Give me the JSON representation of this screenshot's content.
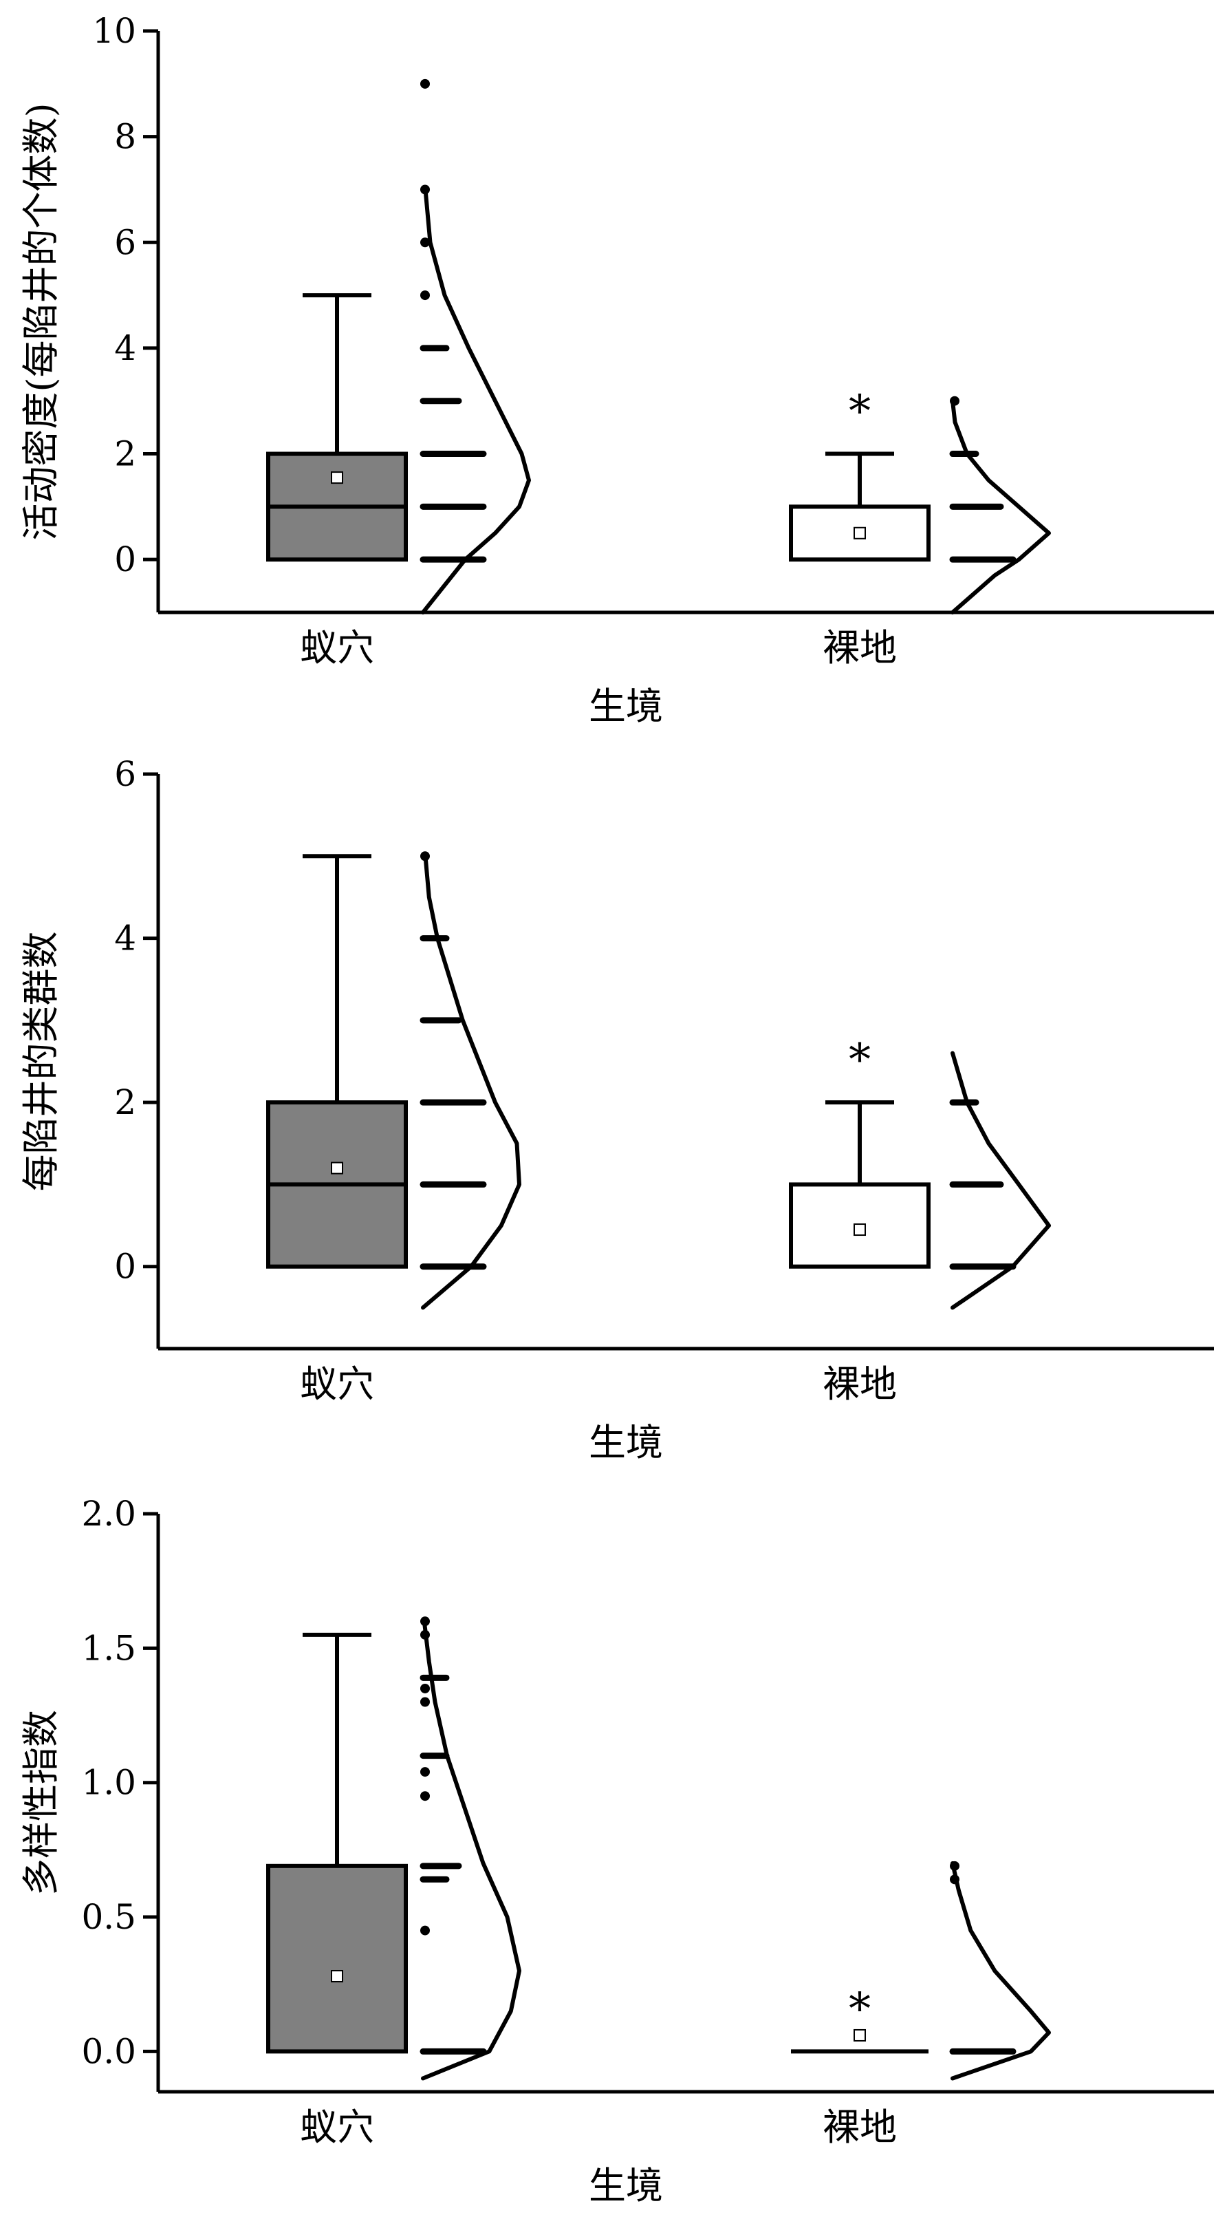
{
  "colors": {
    "ant_nest_box": "#808080",
    "bare_box": "#ffffff",
    "line": "#000000",
    "mean_marker": "#ffffff"
  },
  "chart_data": [
    {
      "type": "box",
      "ylabel": "活动密度(每陷井的个体数)",
      "xlabel": "生境",
      "yticks": [
        0,
        2,
        4,
        6,
        8,
        10
      ],
      "ytick_labels": [
        "0",
        "2",
        "4",
        "6",
        "8",
        "10"
      ],
      "ylim": [
        -1,
        10
      ],
      "grid": false,
      "categories": [
        "蚁穴",
        "裸地"
      ],
      "boxes": [
        {
          "category": "蚁穴",
          "min": 0,
          "q1": 0,
          "median": 1,
          "q3": 2,
          "max": 5,
          "mean": 1.55,
          "outlier_star": false,
          "points": [
            0,
            1,
            2,
            3,
            4,
            5,
            6,
            7,
            9
          ],
          "point_widths": [
            5,
            5,
            5,
            3,
            2,
            1,
            1,
            1,
            1
          ],
          "density": [
            [
              -1,
              0
            ],
            [
              0,
              0.35
            ],
            [
              0.5,
              0.6
            ],
            [
              1,
              0.8
            ],
            [
              1.5,
              0.88
            ],
            [
              2,
              0.82
            ],
            [
              3,
              0.6
            ],
            [
              4,
              0.38
            ],
            [
              5,
              0.18
            ],
            [
              6,
              0.06
            ],
            [
              7,
              0.02
            ]
          ]
        },
        {
          "category": "裸地",
          "min": 0,
          "q1": 0,
          "median": 0,
          "q3": 1,
          "max": 2,
          "mean": 0.5,
          "outlier_star": true,
          "points": [
            0,
            1,
            2,
            3
          ],
          "point_widths": [
            5,
            4,
            2,
            1
          ],
          "density": [
            [
              -1,
              0
            ],
            [
              -0.3,
              0.35
            ],
            [
              0,
              0.55
            ],
            [
              0.5,
              0.8
            ],
            [
              1,
              0.55
            ],
            [
              1.5,
              0.3
            ],
            [
              2,
              0.12
            ],
            [
              2.6,
              0.02
            ],
            [
              3,
              0
            ]
          ]
        }
      ]
    },
    {
      "type": "box",
      "ylabel": "每陷井的类群数",
      "xlabel": "生境",
      "yticks": [
        0,
        2,
        4,
        6
      ],
      "ytick_labels": [
        "0",
        "2",
        "4",
        "6"
      ],
      "ylim": [
        -1,
        6
      ],
      "grid": false,
      "categories": [
        "蚁穴",
        "裸地"
      ],
      "boxes": [
        {
          "category": "蚁穴",
          "min": 0,
          "q1": 0,
          "median": 1,
          "q3": 2,
          "max": 5,
          "mean": 1.2,
          "outlier_star": false,
          "points": [
            0,
            1,
            2,
            3,
            4,
            5
          ],
          "point_widths": [
            5,
            5,
            5,
            3,
            2,
            1
          ],
          "density": [
            [
              -0.5,
              0
            ],
            [
              0,
              0.4
            ],
            [
              0.5,
              0.65
            ],
            [
              1,
              0.8
            ],
            [
              1.5,
              0.78
            ],
            [
              2,
              0.6
            ],
            [
              3,
              0.33
            ],
            [
              4,
              0.12
            ],
            [
              4.5,
              0.05
            ],
            [
              5,
              0.02
            ]
          ]
        },
        {
          "category": "裸地",
          "min": 0,
          "q1": 0,
          "median": 0,
          "q3": 1,
          "max": 2,
          "mean": 0.45,
          "outlier_star": true,
          "points": [
            0,
            1,
            2
          ],
          "point_widths": [
            5,
            4,
            2
          ],
          "density": [
            [
              -0.5,
              0
            ],
            [
              0,
              0.5
            ],
            [
              0.5,
              0.8
            ],
            [
              1,
              0.55
            ],
            [
              1.5,
              0.3
            ],
            [
              2,
              0.12
            ],
            [
              2.6,
              0
            ]
          ]
        }
      ]
    },
    {
      "type": "box",
      "ylabel": "多样性指数",
      "xlabel": "生境",
      "yticks": [
        0.0,
        0.5,
        1.0,
        1.5,
        2.0
      ],
      "ytick_labels": [
        "0.0",
        "0.5",
        "1.0",
        "1.5",
        "2.0"
      ],
      "ylim": [
        -0.15,
        2.0
      ],
      "grid": false,
      "categories": [
        "蚁穴",
        "裸地"
      ],
      "boxes": [
        {
          "category": "蚁穴",
          "min": 0,
          "q1": 0,
          "median": 0,
          "q3": 0.69,
          "max": 1.55,
          "mean": 0.28,
          "outlier_star": false,
          "points": [
            0,
            0.45,
            0.64,
            0.69,
            0.95,
            1.04,
            1.1,
            1.3,
            1.35,
            1.39,
            1.55,
            1.6
          ],
          "point_widths": [
            5,
            1,
            2,
            3,
            1,
            1,
            2,
            1,
            1,
            2,
            1,
            1
          ],
          "density": [
            [
              -0.1,
              0
            ],
            [
              0,
              0.55
            ],
            [
              0.15,
              0.73
            ],
            [
              0.3,
              0.8
            ],
            [
              0.5,
              0.7
            ],
            [
              0.7,
              0.5
            ],
            [
              0.9,
              0.35
            ],
            [
              1.1,
              0.2
            ],
            [
              1.3,
              0.1
            ],
            [
              1.45,
              0.05
            ],
            [
              1.6,
              0.01
            ]
          ]
        },
        {
          "category": "裸地",
          "min": 0,
          "q1": 0,
          "median": 0,
          "q3": 0,
          "max": 0,
          "mean": 0.06,
          "outlier_star": true,
          "points": [
            0,
            0.64,
            0.69
          ],
          "point_widths": [
            5,
            1,
            1
          ],
          "density": [
            [
              -0.1,
              0
            ],
            [
              0,
              0.65
            ],
            [
              0.07,
              0.8
            ],
            [
              0.15,
              0.65
            ],
            [
              0.3,
              0.35
            ],
            [
              0.45,
              0.15
            ],
            [
              0.6,
              0.05
            ],
            [
              0.7,
              0
            ]
          ]
        }
      ]
    }
  ]
}
